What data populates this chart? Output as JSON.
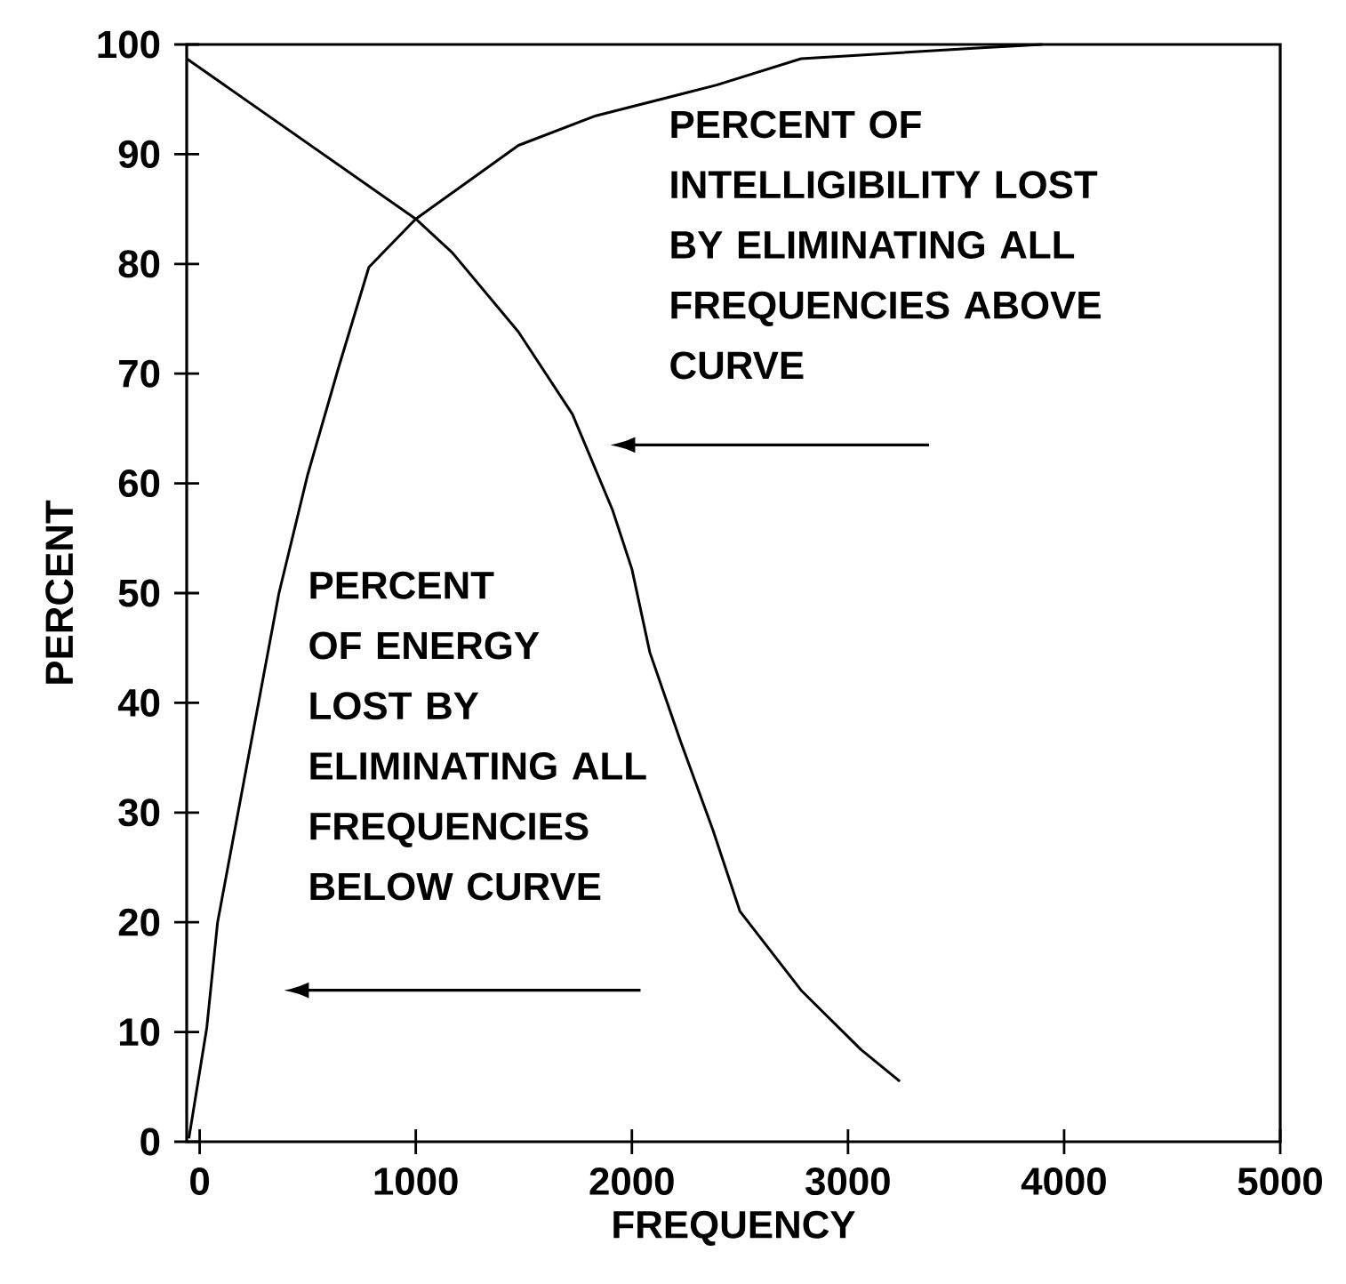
{
  "chart_data": {
    "type": "line",
    "xlabel": "FREQUENCY",
    "ylabel": "PERCENT",
    "annotations": [
      "PERCENT OF INTELLIGIBILITY LOST BY ELIMINATING ALL FREQUENCIES ABOVE CURVE",
      "PERCENT OF ENERGY LOST BY ELIMINATING ALL FREQUENCIES BELOW CURVE"
    ],
    "series": [
      {
        "color": "#000000",
        "x": [
          -60,
          1000,
          1170,
          1475,
          1725,
          1910,
          2000,
          2083,
          2225,
          2375,
          2500,
          2783,
          3060,
          3240
        ],
        "values": [
          98.7,
          84.1,
          81,
          73.8,
          66.3,
          57.6,
          52.2,
          44.6,
          36.5,
          28.4,
          21,
          13.8,
          8.4,
          5.5
        ]
      },
      {
        "color": "#000000",
        "x": [
          -50,
          33,
          83,
          367,
          500,
          642,
          783,
          1000,
          1475,
          1833,
          2392,
          2783,
          3617,
          3900
        ],
        "values": [
          0.3,
          10.4,
          20,
          50,
          60.8,
          70.5,
          79.7,
          84.1,
          90.8,
          93.5,
          96.3,
          98.7,
          99.7,
          100
        ]
      }
    ],
    "xlim": [
      -60,
      5000
    ],
    "ylim": [
      0,
      100
    ],
    "xticks": [
      0,
      1000,
      2000,
      3000,
      4000,
      5000
    ],
    "yticks": [
      0,
      10,
      20,
      30,
      40,
      50,
      60,
      70,
      80,
      90,
      100
    ],
    "grid": false,
    "line_style": "solid"
  }
}
